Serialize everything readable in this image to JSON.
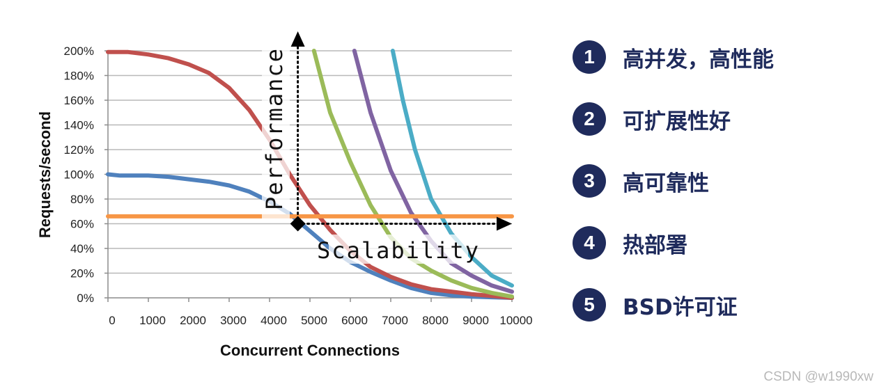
{
  "chart_data": {
    "type": "line",
    "xlabel": "Concurrent Connections",
    "ylabel": "Requests/second",
    "x_ticks": [
      "0",
      "1000",
      "2000",
      "3000",
      "4000",
      "5000",
      "6000",
      "7000",
      "8000",
      "9000",
      "10000"
    ],
    "y_ticks": [
      "0%",
      "20%",
      "40%",
      "60%",
      "80%",
      "100%",
      "120%",
      "140%",
      "160%",
      "180%",
      "200%"
    ],
    "xlim": [
      0,
      10000
    ],
    "ylim": [
      0,
      200
    ],
    "grid": "horizontal",
    "series": [
      {
        "color": "#4f81bd",
        "x": [
          0,
          300,
          1000,
          1500,
          2000,
          2500,
          3000,
          3500,
          4000,
          4500,
          5000,
          5500,
          6000,
          6500,
          7000,
          7500,
          8000,
          8500,
          9000,
          9500,
          10000
        ],
        "y": [
          100,
          99,
          99,
          98,
          96,
          94,
          91,
          86,
          78,
          68,
          54,
          40,
          29,
          21,
          14,
          8,
          4,
          2,
          1,
          0.5,
          0
        ]
      },
      {
        "color": "#c0504d",
        "x": [
          0,
          500,
          1000,
          1500,
          2000,
          2500,
          3000,
          3500,
          4000,
          4500,
          5000,
          5500,
          6000,
          6500,
          7000,
          7500,
          8000,
          8500,
          9000,
          9500,
          10000
        ],
        "y": [
          199,
          199,
          197,
          194,
          189,
          182,
          170,
          152,
          128,
          100,
          75,
          55,
          38,
          25,
          17,
          11,
          7,
          5,
          3,
          1.5,
          0
        ]
      },
      {
        "color": "#9bbb59",
        "x": [
          5100,
          5500,
          6000,
          6500,
          7000,
          7500,
          8000,
          8500,
          9000,
          9500,
          10000
        ],
        "y": [
          200,
          150,
          110,
          75,
          49,
          32,
          22,
          14,
          8,
          4,
          1
        ]
      },
      {
        "color": "#8064a2",
        "x": [
          6100,
          6500,
          7000,
          7500,
          8000,
          8500,
          9000,
          9500,
          10000
        ],
        "y": [
          200,
          150,
          103,
          69,
          46,
          28,
          18,
          10,
          5
        ]
      },
      {
        "color": "#4bacc6",
        "x": [
          7050,
          7300,
          7600,
          8000,
          8500,
          9000,
          9500,
          10000
        ],
        "y": [
          200,
          160,
          120,
          80,
          52,
          33,
          18,
          10
        ]
      },
      {
        "color": "#f79646",
        "x": [
          0,
          10000
        ],
        "y": [
          66,
          66
        ]
      }
    ],
    "overlay": {
      "vertical_label": "Performance",
      "horizontal_label": "Scalability",
      "origin": {
        "x": 4700,
        "y": 60
      },
      "vertical_end_y": 200,
      "horizontal_end_x": 10000
    }
  },
  "features": [
    {
      "num": "1",
      "label": "高并发，高性能"
    },
    {
      "num": "2",
      "label": "可扩展性好"
    },
    {
      "num": "3",
      "label": "高可靠性"
    },
    {
      "num": "4",
      "label": "热部署"
    },
    {
      "num": "5",
      "label": "BSD许可证"
    }
  ],
  "watermark": "CSDN @w1990xw"
}
